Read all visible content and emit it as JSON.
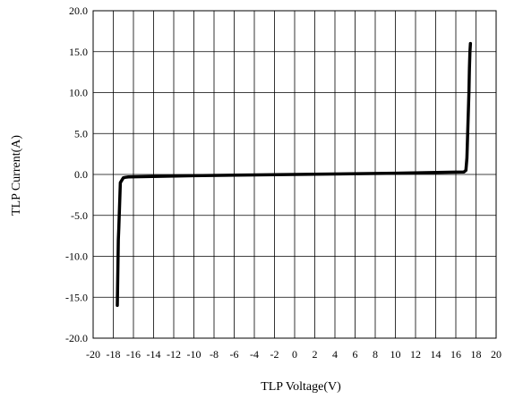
{
  "chart_data": {
    "type": "line",
    "title": "",
    "xlabel": "TLP Voltage(V)",
    "ylabel": "TLP Current(A)",
    "xlim": [
      -20,
      20
    ],
    "ylim": [
      -20,
      20
    ],
    "x_ticks": [
      -20,
      -18,
      -16,
      -14,
      -12,
      -10,
      -8,
      -6,
      -4,
      -2,
      0,
      2,
      4,
      6,
      8,
      10,
      12,
      14,
      16,
      18,
      20
    ],
    "x_tick_labels": [
      "-20",
      "-18",
      "-16",
      "-14",
      "-12",
      "-10",
      "-8",
      "-6",
      "-4",
      "-2",
      "0",
      "2",
      "4",
      "6",
      "8",
      "10",
      "12",
      "14",
      "16",
      "18",
      "20"
    ],
    "y_ticks": [
      20,
      15,
      10,
      5,
      0,
      -5,
      -10,
      -15,
      -20
    ],
    "y_tick_labels": [
      "20.0",
      "15.0",
      "10.0",
      "5.0",
      "0.0",
      "-5.0",
      "-10.0",
      "-15.0",
      "-20.0"
    ],
    "grid": true,
    "legend": "none",
    "line_color": "#000000",
    "series": [
      {
        "x": [
          -17.6,
          -17.55,
          -17.5,
          -17.45,
          -17.3,
          -17.0,
          -16.8,
          -16.5,
          -10,
          0,
          10,
          16.8,
          17.0,
          17.1,
          17.2,
          17.3,
          17.35,
          17.4,
          17.45
        ],
        "y": [
          -16.0,
          -12.0,
          -8.0,
          -6.5,
          -1.0,
          -0.4,
          -0.35,
          -0.3,
          -0.15,
          0.0,
          0.15,
          0.3,
          0.5,
          2.0,
          6.0,
          10.0,
          13.0,
          15.0,
          16.0
        ]
      }
    ]
  }
}
